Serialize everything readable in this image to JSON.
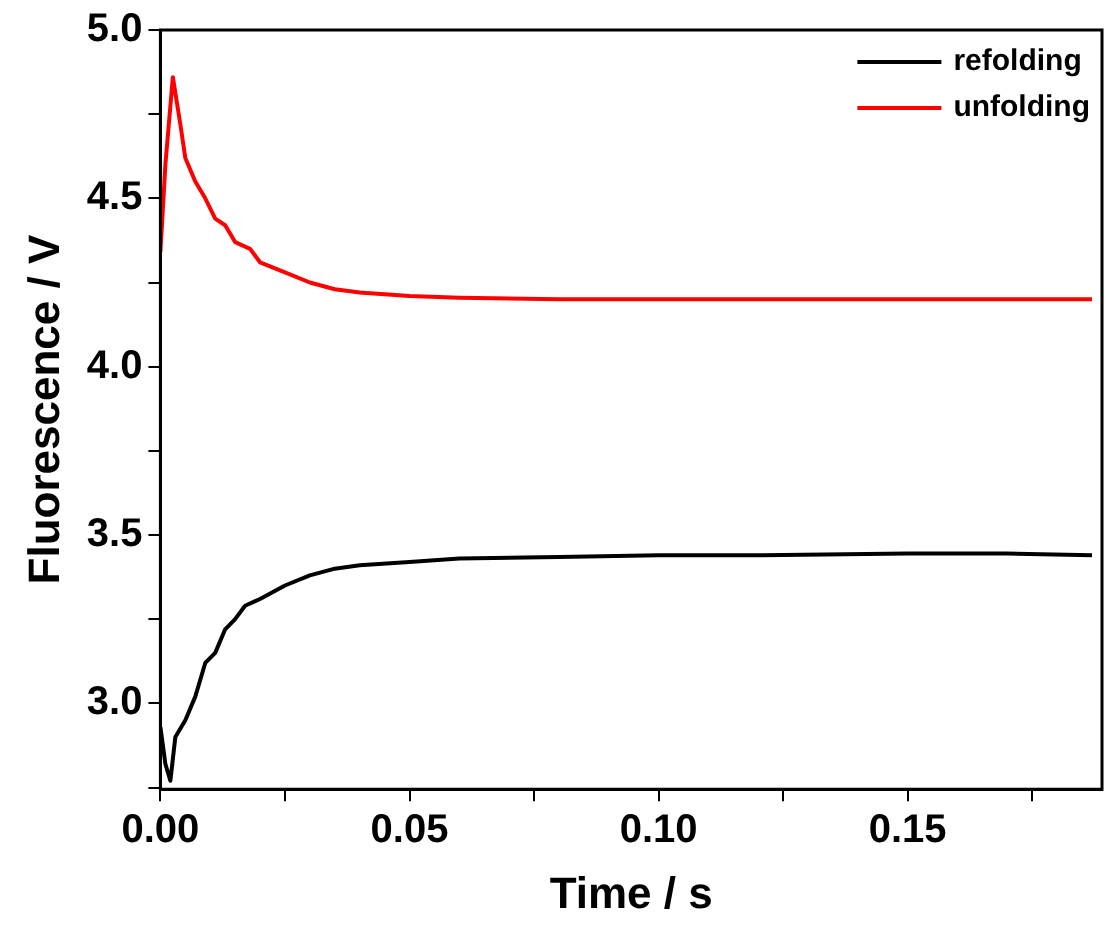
{
  "chart_data": {
    "type": "line",
    "xlabel": "Time / s",
    "ylabel": "Fluorescence / V",
    "xlim": [
      0,
      0.189
    ],
    "ylim": [
      2.745,
      5.0
    ],
    "xticks": [
      {
        "value": 0,
        "label": "0.00"
      },
      {
        "value": 0.025,
        "label": null
      },
      {
        "value": 0.05,
        "label": "0.05"
      },
      {
        "value": 0.075,
        "label": null
      },
      {
        "value": 0.1,
        "label": "0.10"
      },
      {
        "value": 0.125,
        "label": null
      },
      {
        "value": 0.15,
        "label": "0.15"
      },
      {
        "value": 0.175,
        "label": null
      }
    ],
    "yticks": [
      {
        "value": 2.75,
        "label": null
      },
      {
        "value": 3.0,
        "label": "3.0"
      },
      {
        "value": 3.25,
        "label": null
      },
      {
        "value": 3.5,
        "label": "3.5"
      },
      {
        "value": 3.75,
        "label": null
      },
      {
        "value": 4.0,
        "label": "4.0"
      },
      {
        "value": 4.25,
        "label": null
      },
      {
        "value": 4.5,
        "label": "4.5"
      },
      {
        "value": 4.75,
        "label": null
      },
      {
        "value": 5.0,
        "label": "5.0"
      }
    ],
    "legend": "top right",
    "marker": "none",
    "line_style": "solid",
    "grid": false,
    "series": [
      {
        "name": "refolding",
        "color": "#000000",
        "x": [
          0,
          0.001,
          0.002,
          0.003,
          0.005,
          0.007,
          0.009,
          0.011,
          0.013,
          0.015,
          0.017,
          0.02,
          0.025,
          0.03,
          0.035,
          0.04,
          0.05,
          0.06,
          0.08,
          0.1,
          0.12,
          0.15,
          0.17,
          0.187
        ],
        "values": [
          2.93,
          2.82,
          2.77,
          2.9,
          2.95,
          3.02,
          3.12,
          3.15,
          3.22,
          3.25,
          3.29,
          3.31,
          3.35,
          3.38,
          3.4,
          3.41,
          3.42,
          3.43,
          3.435,
          3.44,
          3.44,
          3.445,
          3.445,
          3.44
        ]
      },
      {
        "name": "unfolding",
        "color": "#ff0000",
        "x": [
          0,
          0.001,
          0.0025,
          0.004,
          0.005,
          0.007,
          0.009,
          0.011,
          0.013,
          0.015,
          0.018,
          0.02,
          0.025,
          0.03,
          0.035,
          0.04,
          0.05,
          0.06,
          0.08,
          0.1,
          0.12,
          0.15,
          0.17,
          0.187
        ],
        "values": [
          4.34,
          4.6,
          4.86,
          4.72,
          4.62,
          4.55,
          4.5,
          4.44,
          4.42,
          4.37,
          4.35,
          4.31,
          4.28,
          4.25,
          4.23,
          4.22,
          4.21,
          4.205,
          4.2,
          4.2,
          4.2,
          4.2,
          4.2,
          4.2
        ]
      }
    ]
  }
}
